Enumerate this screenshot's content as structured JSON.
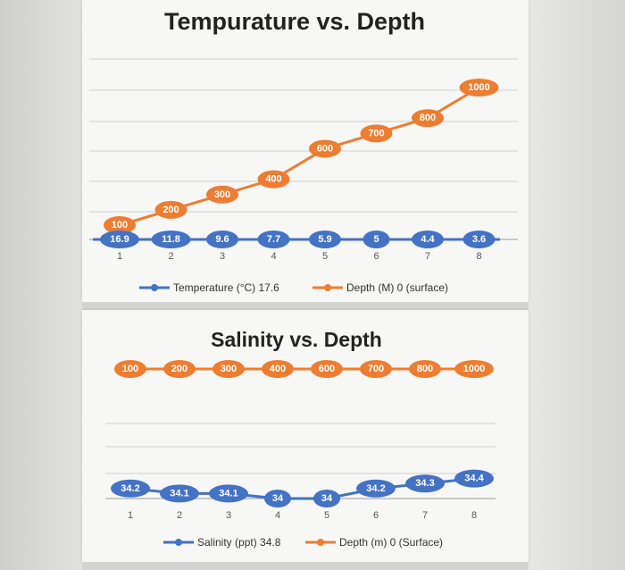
{
  "chart_data": [
    {
      "type": "line",
      "title": "Tempurature vs. Depth",
      "categories": [
        "1",
        "2",
        "3",
        "4",
        "5",
        "6",
        "7",
        "8"
      ],
      "series": [
        {
          "name": "Temperature (°C) 17.6",
          "values": [
            16.9,
            11.8,
            9.6,
            7.7,
            5.9,
            5,
            4.4,
            3.6
          ],
          "color": "#4472C4"
        },
        {
          "name": "Depth (M) 0 (surface)",
          "values": [
            100,
            200,
            300,
            400,
            600,
            700,
            800,
            1000
          ],
          "color": "#ED7D31"
        }
      ],
      "legend_position": "bottom",
      "grid": true
    },
    {
      "type": "line",
      "title": "Salinity vs. Depth",
      "categories": [
        "1",
        "2",
        "3",
        "4",
        "5",
        "6",
        "7",
        "8"
      ],
      "series": [
        {
          "name": "Salinity (ppt) 34.8",
          "values": [
            34.2,
            34.1,
            34.1,
            34,
            34,
            34.2,
            34.3,
            34.4
          ],
          "color": "#4472C4"
        },
        {
          "name": "Depth (m) 0 (Surface)",
          "values": [
            100,
            200,
            300,
            400,
            600,
            700,
            800,
            1000
          ],
          "color": "#ED7D31"
        }
      ],
      "legend_position": "bottom",
      "grid": true
    }
  ]
}
